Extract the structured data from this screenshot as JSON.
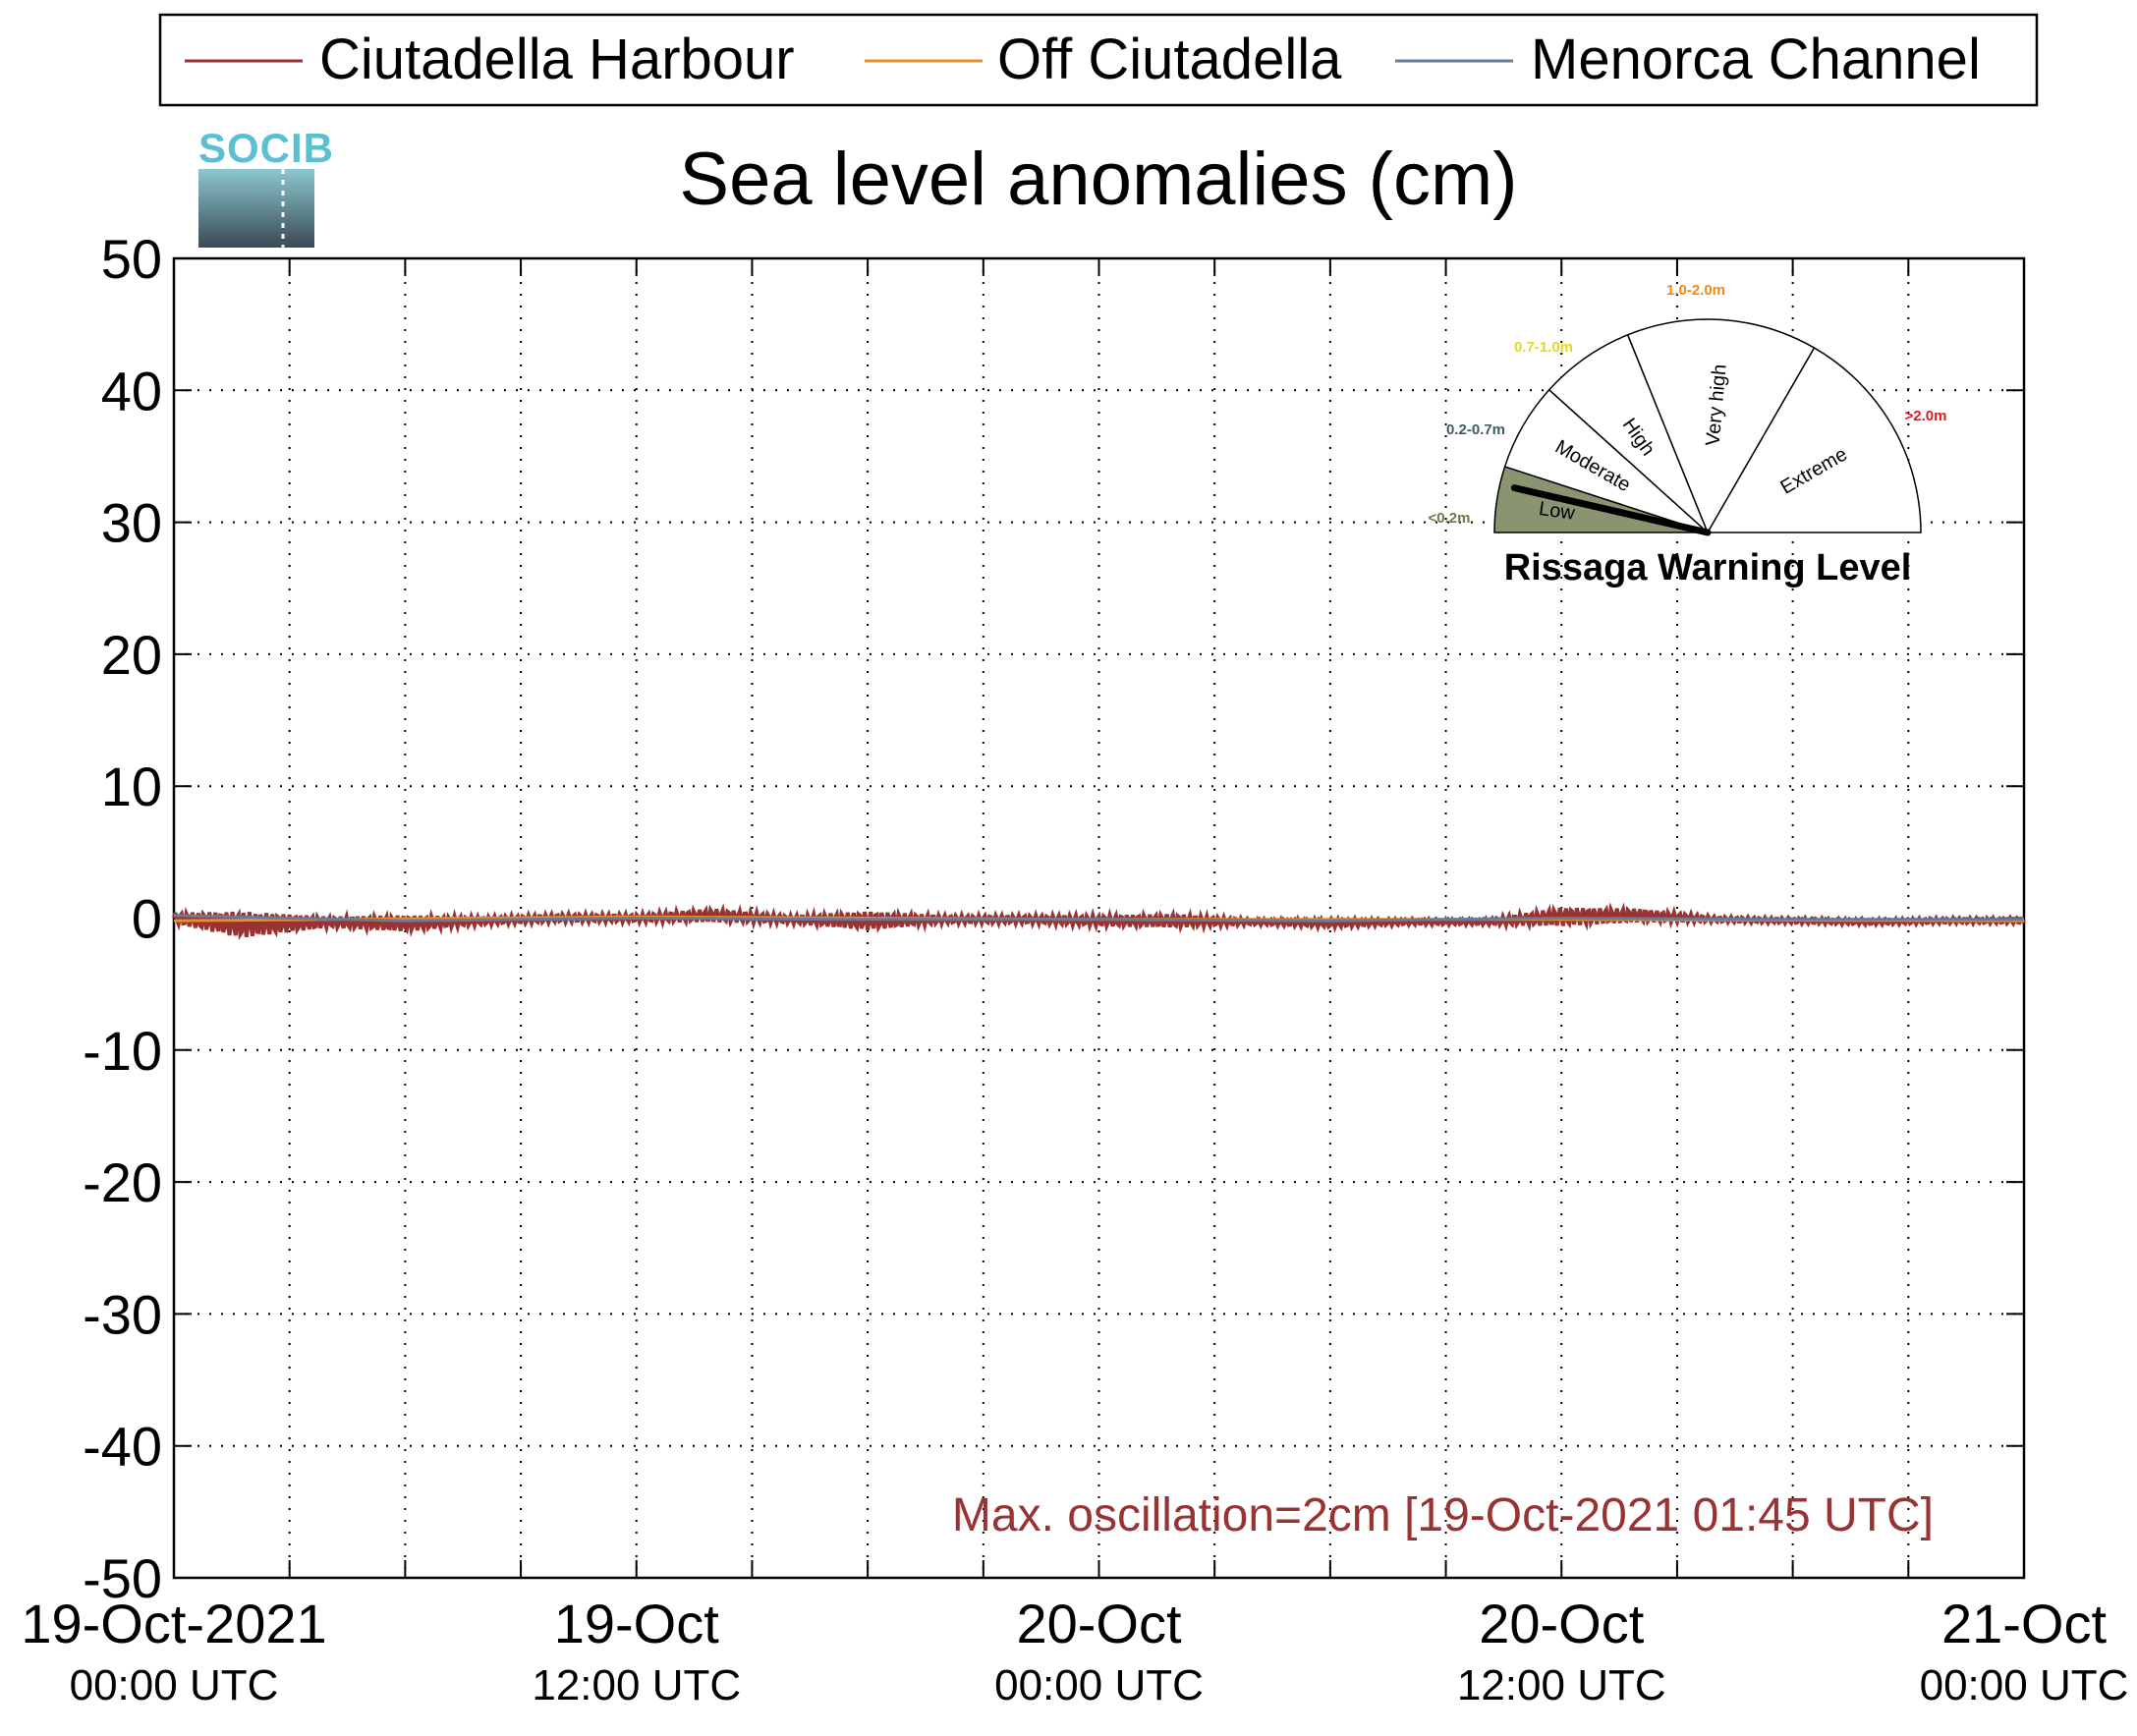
{
  "legend": {
    "entries": [
      {
        "label": "Ciutadella Harbour",
        "color": "#993333"
      },
      {
        "label": "Off Ciutadella",
        "color": "#e6902a"
      },
      {
        "label": "Menorca Channel",
        "color": "#6b7a99"
      }
    ]
  },
  "logo": {
    "text": "SOCIB",
    "color": "#5bbfd1"
  },
  "chart_data": {
    "type": "line",
    "title": "Sea level anomalies (cm)",
    "xlabel": "",
    "ylabel": "",
    "ylim": [
      -50,
      50
    ],
    "yticks": [
      -50,
      -40,
      -30,
      -20,
      -10,
      0,
      10,
      20,
      30,
      40,
      50
    ],
    "ytick_labels": [
      "-50",
      "-40",
      "-30",
      "-20",
      "-10",
      "0",
      "10",
      "20",
      "30",
      "40",
      "50"
    ],
    "xlim": [
      "2021-10-19 00:00",
      "2021-10-21 00:00"
    ],
    "xtick_labels": [
      {
        "line1": "19-Oct-2021",
        "line2": "00:00 UTC"
      },
      {
        "line1": "19-Oct",
        "line2": "12:00 UTC"
      },
      {
        "line1": "20-Oct",
        "line2": "00:00 UTC"
      },
      {
        "line1": "20-Oct",
        "line2": "12:00 UTC"
      },
      {
        "line1": "21-Oct",
        "line2": "00:00 UTC"
      }
    ],
    "grid": true,
    "legend_position": "top",
    "series": [
      {
        "name": "Ciutadella Harbour",
        "color": "#993333",
        "x": [
          "2021-10-19 00:00",
          "2021-10-19 01:45",
          "2021-10-19 04:00",
          "2021-10-19 06:00",
          "2021-10-19 08:00",
          "2021-10-19 10:00",
          "2021-10-19 12:00",
          "2021-10-19 14:00",
          "2021-10-19 16:00",
          "2021-10-19 18:00",
          "2021-10-19 20:00",
          "2021-10-19 22:00",
          "2021-10-20 00:00",
          "2021-10-20 02:00",
          "2021-10-20 04:00",
          "2021-10-20 06:00",
          "2021-10-20 08:00",
          "2021-10-20 10:00",
          "2021-10-20 12:00",
          "2021-10-20 14:00",
          "2021-10-20 16:00",
          "2021-10-20 18:00",
          "2021-10-20 20:00",
          "2021-10-20 22:00",
          "2021-10-21 00:00"
        ],
        "values": [
          0.0,
          -0.5,
          -0.3,
          -0.4,
          -0.2,
          0.0,
          0.0,
          0.2,
          -0.1,
          -0.2,
          -0.1,
          -0.1,
          -0.2,
          -0.2,
          -0.3,
          -0.4,
          -0.3,
          -0.3,
          0.1,
          0.2,
          -0.1,
          -0.2,
          -0.3,
          -0.2,
          -0.2
        ],
        "amplitude": [
          0.4,
          1.0,
          0.4,
          0.6,
          0.3,
          0.3,
          0.3,
          0.5,
          0.3,
          0.7,
          0.3,
          0.3,
          0.4,
          0.5,
          0.2,
          0.3,
          0.2,
          0.2,
          0.7,
          0.5,
          0.2,
          0.2,
          0.2,
          0.2,
          0.2
        ]
      },
      {
        "name": "Off Ciutadella",
        "color": "#e6902a",
        "x": [
          "2021-10-19 00:00",
          "2021-10-19 12:00",
          "2021-10-20 00:00",
          "2021-10-20 12:00",
          "2021-10-21 00:00"
        ],
        "values": [
          -0.2,
          0.1,
          -0.1,
          -0.1,
          -0.2
        ]
      },
      {
        "name": "Menorca Channel",
        "color": "#6b7a99",
        "x": [
          "2021-10-19 00:00",
          "2021-10-19 06:00",
          "2021-10-19 12:00",
          "2021-10-19 18:00",
          "2021-10-20 00:00",
          "2021-10-20 06:00",
          "2021-10-20 12:00",
          "2021-10-20 18:00",
          "2021-10-21 00:00"
        ],
        "values": [
          0.2,
          -0.2,
          0.0,
          -0.1,
          -0.1,
          -0.2,
          0.0,
          -0.1,
          -0.1
        ]
      }
    ],
    "annotation": {
      "text": "Max. oscillation=2cm [19-Oct-2021 01:45 UTC]",
      "color": "#993333"
    }
  },
  "gauge": {
    "title": "Rissaga Warning Level",
    "current_level": "Low",
    "needle_color": "#000000",
    "segments": [
      {
        "name": "Low",
        "range": "<0.2m",
        "range_color": "#6b7a4a",
        "fill": "#8a9470"
      },
      {
        "name": "Moderate",
        "range": "0.2-0.7m",
        "range_color": "#3c5d60",
        "fill": "#ffffff"
      },
      {
        "name": "High",
        "range": "0.7-1.0m",
        "range_color": "#e3d81a",
        "fill": "#ffffff"
      },
      {
        "name": "Very high",
        "range": "1.0-2.0m",
        "range_color": "#f08a16",
        "fill": "#ffffff"
      },
      {
        "name": "Extreme",
        "range": ">2.0m",
        "range_color": "#e01b1b",
        "fill": "#ffffff"
      }
    ]
  }
}
